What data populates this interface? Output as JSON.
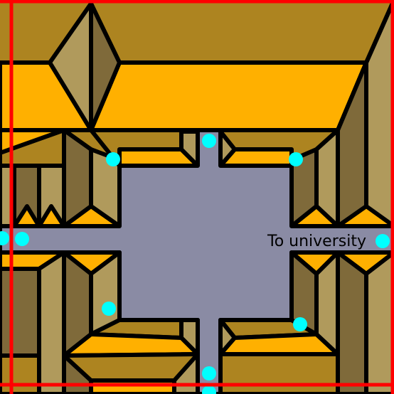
{
  "scene": {
    "label": "To university",
    "colors": {
      "road": "#8a8ba4",
      "roof_top": "#ad8420",
      "roof_orange": "#ffb000",
      "wall_light": "#b09a5c",
      "wall_dark": "#7f6a3a",
      "outline": "#000000",
      "waypoint": "#00ffff",
      "frame": "#ff0000"
    }
  }
}
